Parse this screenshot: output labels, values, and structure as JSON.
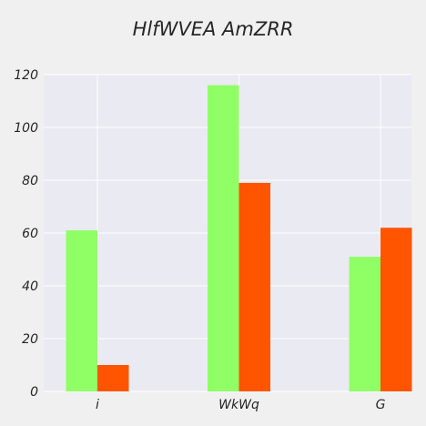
{
  "chart_data": {
    "type": "bar",
    "title": "HlfWVEA AmZRR",
    "xlabel": "",
    "ylabel": "",
    "categories": [
      "i",
      "WkWq",
      "G"
    ],
    "series": [
      {
        "values": [
          61,
          116,
          51
        ],
        "color": "#90ff66"
      },
      {
        "values": [
          10,
          79,
          62
        ],
        "color": "#ff5500"
      }
    ],
    "ylim": [
      0,
      120
    ],
    "yticks": [
      0,
      20,
      40,
      60,
      80,
      100,
      120
    ],
    "grid": true,
    "plot_background": "#eaeaf2",
    "page_background": "#f0f0f0",
    "grid_color": "#ffffff"
  }
}
